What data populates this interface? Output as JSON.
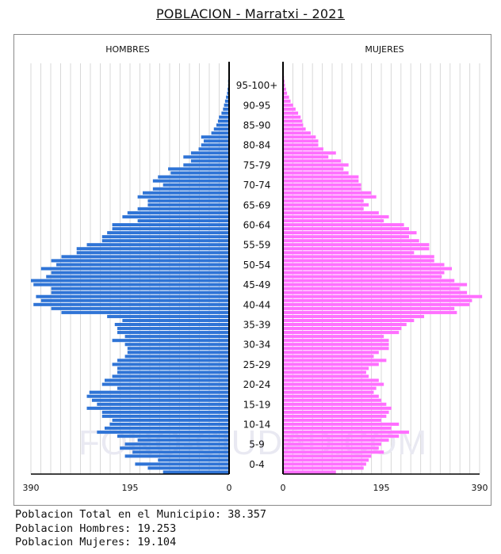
{
  "title": "POBLACION - Marratxi - 2021",
  "watermark": "FORO-CIUDAD.COM",
  "footer": {
    "total": "Poblacion Total en el Municipio: 38.357",
    "men": "Poblacion Hombres: 19.253",
    "women": "Poblacion Mujeres: 19.104"
  },
  "colors": {
    "men": "#2f74d6",
    "women": "#ff6fff",
    "grid": "#d8d8d8"
  },
  "chart_data": {
    "type": "bar",
    "orientation": "horizontal-pyramid",
    "series_labels": {
      "men": "HOMBRES",
      "women": "MUJERES"
    },
    "x_ticks_left": [
      "390",
      "195",
      "0"
    ],
    "x_ticks_right": [
      "0",
      "195",
      "390"
    ],
    "xlim": [
      0,
      390
    ],
    "age_groups": [
      "0-4",
      "5-9",
      "10-14",
      "15-19",
      "20-24",
      "25-29",
      "30-34",
      "35-39",
      "40-44",
      "45-49",
      "50-54",
      "55-59",
      "60-64",
      "65-69",
      "70-74",
      "75-79",
      "80-84",
      "85-90",
      "90-95",
      "95-100+"
    ],
    "ages": [
      0,
      1,
      2,
      3,
      4,
      5,
      6,
      7,
      8,
      9,
      10,
      11,
      12,
      13,
      14,
      15,
      16,
      17,
      18,
      19,
      20,
      21,
      22,
      23,
      24,
      25,
      26,
      27,
      28,
      29,
      30,
      31,
      32,
      33,
      34,
      35,
      36,
      37,
      38,
      39,
      40,
      41,
      42,
      43,
      44,
      45,
      46,
      47,
      48,
      49,
      50,
      51,
      52,
      53,
      54,
      55,
      56,
      57,
      58,
      59,
      60,
      61,
      62,
      63,
      64,
      65,
      66,
      67,
      68,
      69,
      70,
      71,
      72,
      73,
      74,
      75,
      76,
      77,
      78,
      79,
      80,
      81,
      82,
      83,
      84,
      85,
      86,
      87,
      88,
      89,
      90,
      91,
      92,
      93,
      94,
      95,
      96,
      97,
      98,
      99,
      100
    ],
    "men": [
      130,
      160,
      185,
      140,
      205,
      190,
      215,
      205,
      180,
      220,
      260,
      245,
      235,
      230,
      250,
      250,
      280,
      260,
      270,
      280,
      275,
      220,
      250,
      245,
      230,
      220,
      220,
      230,
      220,
      205,
      200,
      200,
      205,
      230,
      205,
      220,
      220,
      225,
      210,
      240,
      330,
      350,
      385,
      370,
      380,
      350,
      350,
      385,
      390,
      360,
      350,
      370,
      340,
      350,
      330,
      300,
      300,
      280,
      250,
      250,
      240,
      230,
      230,
      180,
      210,
      200,
      180,
      160,
      160,
      180,
      170,
      150,
      130,
      150,
      140,
      115,
      120,
      90,
      75,
      90,
      75,
      60,
      55,
      50,
      55,
      35,
      30,
      25,
      22,
      20,
      15,
      12,
      10,
      8,
      6,
      4,
      3,
      2,
      2,
      1,
      1
    ],
    "women": [
      105,
      160,
      165,
      170,
      175,
      200,
      190,
      195,
      210,
      230,
      250,
      215,
      230,
      195,
      205,
      210,
      215,
      205,
      195,
      190,
      180,
      185,
      200,
      190,
      170,
      165,
      170,
      190,
      205,
      180,
      190,
      210,
      210,
      210,
      200,
      230,
      235,
      245,
      260,
      280,
      345,
      340,
      370,
      375,
      395,
      365,
      350,
      365,
      340,
      315,
      320,
      335,
      320,
      300,
      300,
      260,
      290,
      290,
      270,
      250,
      265,
      250,
      240,
      200,
      210,
      190,
      160,
      170,
      160,
      185,
      175,
      155,
      155,
      150,
      150,
      130,
      120,
      130,
      115,
      90,
      105,
      80,
      70,
      70,
      65,
      55,
      45,
      40,
      38,
      35,
      30,
      25,
      20,
      15,
      12,
      8,
      6,
      4,
      3,
      2,
      1
    ]
  }
}
